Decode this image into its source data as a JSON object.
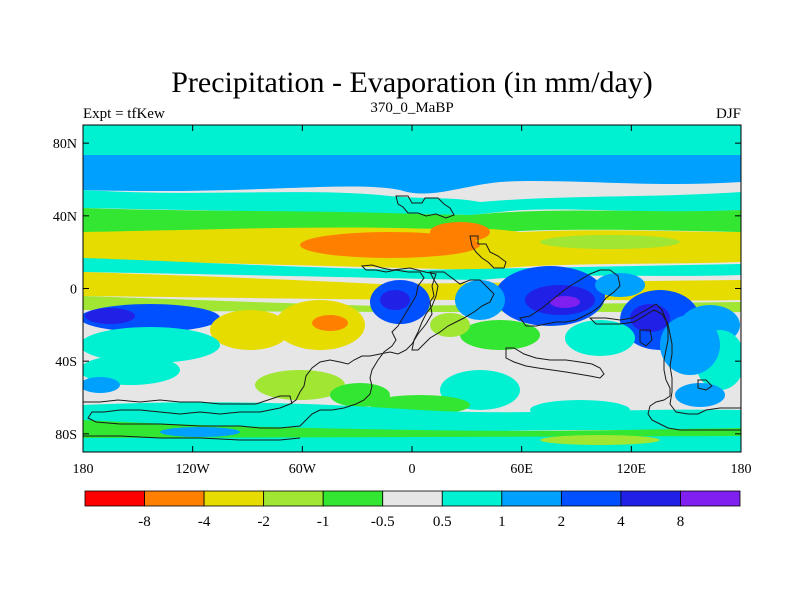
{
  "title": "Precipitation - Evaporation (in mm/day)",
  "subtitle": "370_0_MaBP",
  "left_label": "Expt = tfKew",
  "right_label": "DJF",
  "map": {
    "lon_range": [
      -180,
      180
    ],
    "lat_range": [
      -90,
      90
    ],
    "lat_ticks": [
      {
        "value": 80,
        "label": "80N"
      },
      {
        "value": 40,
        "label": "40N"
      },
      {
        "value": 0,
        "label": "0"
      },
      {
        "value": -40,
        "label": "40S"
      },
      {
        "value": -80,
        "label": "80S"
      }
    ],
    "lon_ticks": [
      {
        "value": -180,
        "label": "180"
      },
      {
        "value": -120,
        "label": "120W"
      },
      {
        "value": -60,
        "label": "60W"
      },
      {
        "value": 0,
        "label": "0"
      },
      {
        "value": 60,
        "label": "60E"
      },
      {
        "value": 120,
        "label": "120E"
      },
      {
        "value": 180,
        "label": "180"
      }
    ]
  },
  "colorbar": {
    "colors": [
      "#ff0000",
      "#ff8000",
      "#e6dc00",
      "#a0e632",
      "#32e632",
      "#e6e6e6",
      "#00f0d2",
      "#00a0ff",
      "#0050ff",
      "#2020e6",
      "#8020f0"
    ],
    "labels": [
      "-8",
      "-4",
      "-2",
      "-1",
      "-0.5",
      "0.5",
      "1",
      "2",
      "4",
      "8"
    ]
  }
}
